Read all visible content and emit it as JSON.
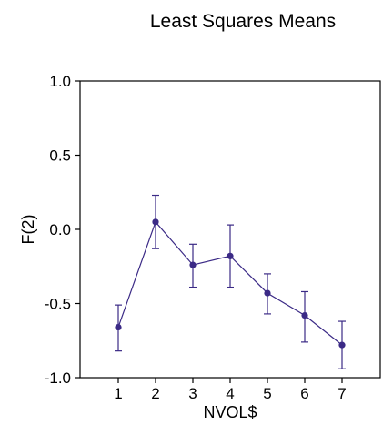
{
  "chart_data": {
    "type": "line",
    "title": "Least Squares Means",
    "xlabel": "NVOL$",
    "ylabel": "F(2)",
    "categories": [
      "1",
      "2",
      "3",
      "4",
      "5",
      "6",
      "7"
    ],
    "series": [
      {
        "values": [
          -0.66,
          0.05,
          -0.24,
          -0.18,
          -0.43,
          -0.58,
          -0.78
        ],
        "error_low": [
          -0.82,
          -0.13,
          -0.39,
          -0.39,
          -0.57,
          -0.76,
          -0.94
        ],
        "error_high": [
          -0.51,
          0.23,
          -0.1,
          0.03,
          -0.3,
          -0.42,
          -0.62
        ]
      }
    ],
    "ylim": [
      -1.0,
      1.0
    ],
    "yticks": [
      "-1.0",
      "-0.5",
      "0.0",
      "0.5",
      "1.0"
    ],
    "grid": false,
    "legend": "none",
    "colors": {
      "series": "#3b2a86",
      "axes": "#000000"
    }
  }
}
